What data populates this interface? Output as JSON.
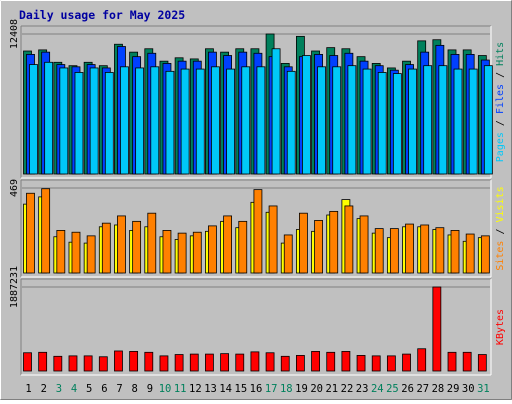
{
  "chart_data": {
    "type": "bar",
    "title": "Daily usage for May 2025",
    "colors": {
      "background": "#C0C0C0",
      "title": "#0000A0",
      "hits": "#00805C",
      "files": "#0040FF",
      "pages": "#00C8F8",
      "visits": "#FFFF00",
      "sites": "#FF8000",
      "kbytes": "#FF0000",
      "weekday_label": "#000000",
      "weekend_label": "#00805C"
    },
    "days": [
      "1",
      "2",
      "3",
      "4",
      "5",
      "6",
      "7",
      "8",
      "9",
      "10",
      "11",
      "12",
      "13",
      "14",
      "15",
      "16",
      "17",
      "18",
      "19",
      "20",
      "21",
      "22",
      "23",
      "24",
      "25",
      "26",
      "27",
      "28",
      "29",
      "30",
      "31"
    ],
    "weekend_days": [
      3,
      4,
      10,
      11,
      17,
      18,
      24,
      25,
      31
    ],
    "panels": [
      {
        "key": "hits_files_pages",
        "max_label": "12408",
        "ymax": 12408,
        "legend": [
          {
            "text": "Pages",
            "color": "#00C8F8"
          },
          {
            "text": " / ",
            "color": "#000000"
          },
          {
            "text": "Files",
            "color": "#0040FF"
          },
          {
            "text": " / ",
            "color": "#000000"
          },
          {
            "text": "Hits",
            "color": "#00805C"
          }
        ],
        "series": [
          {
            "name": "Hits",
            "color": "#00805C",
            "values": [
              10900,
              11000,
              9900,
              9600,
              9900,
              9600,
              11500,
              10800,
              11100,
              10000,
              10300,
              10200,
              11100,
              10800,
              11100,
              11100,
              12408,
              9800,
              12200,
              10900,
              11200,
              11100,
              10400,
              9800,
              9400,
              10000,
              11800,
              11900,
              11000,
              11000,
              10500
            ]
          },
          {
            "name": "Files",
            "color": "#0040FF",
            "values": [
              10600,
              10800,
              9700,
              9500,
              9700,
              9400,
              11300,
              10400,
              10700,
              9800,
              10000,
              10000,
              10800,
              10500,
              10800,
              10700,
              10400,
              9500,
              10400,
              10600,
              10500,
              10700,
              10000,
              9600,
              9200,
              9700,
              10800,
              11400,
              10600,
              10600,
              10100
            ]
          },
          {
            "name": "Pages",
            "color": "#00C8F8",
            "values": [
              9700,
              9900,
              9400,
              9000,
              9400,
              9000,
              9500,
              9400,
              9500,
              9100,
              9300,
              9300,
              9500,
              9300,
              9500,
              9500,
              11100,
              9100,
              10500,
              9500,
              9500,
              9600,
              9300,
              9000,
              8900,
              9300,
              9600,
              9600,
              9300,
              9300,
              9600
            ]
          }
        ]
      },
      {
        "key": "sites_visits",
        "max_label": "469",
        "ymax": 469,
        "legend": [
          {
            "text": "Sites",
            "color": "#FF8000"
          },
          {
            "text": " / ",
            "color": "#000000"
          },
          {
            "text": "Visits",
            "color": "#FFFF00"
          }
        ],
        "series": [
          {
            "name": "Visits",
            "color": "#FFFF00",
            "values": [
              380,
              420,
              200,
              170,
              165,
              255,
              265,
              235,
              255,
              200,
              185,
              205,
              230,
              285,
              250,
              390,
              335,
              165,
              240,
              230,
              320,
              405,
              300,
              220,
              195,
              255,
              255,
              240,
              210,
              175,
              195
            ]
          },
          {
            "name": "Sites",
            "color": "#FF8000",
            "values": [
              440,
              465,
              235,
              225,
              205,
              275,
              315,
              285,
              330,
              235,
              220,
              225,
              260,
              315,
              285,
              460,
              370,
              210,
              330,
              290,
              340,
              370,
              315,
              245,
              245,
              270,
              265,
              250,
              235,
              215,
              205
            ]
          }
        ]
      },
      {
        "key": "kbytes",
        "max_label": "1887231",
        "ymax": 1887231,
        "legend": [
          {
            "text": "KBytes",
            "color": "#FF0000"
          }
        ],
        "series": [
          {
            "name": "KBytes",
            "color": "#FF0000",
            "values": [
              410000,
              420000,
              330000,
              340000,
              340000,
              320000,
              450000,
              440000,
              420000,
              340000,
              370000,
              380000,
              380000,
              390000,
              380000,
              430000,
              410000,
              330000,
              350000,
              440000,
              420000,
              440000,
              350000,
              340000,
              340000,
              380000,
              500000,
              1887231,
              420000,
              420000,
              370000
            ]
          }
        ]
      }
    ]
  }
}
